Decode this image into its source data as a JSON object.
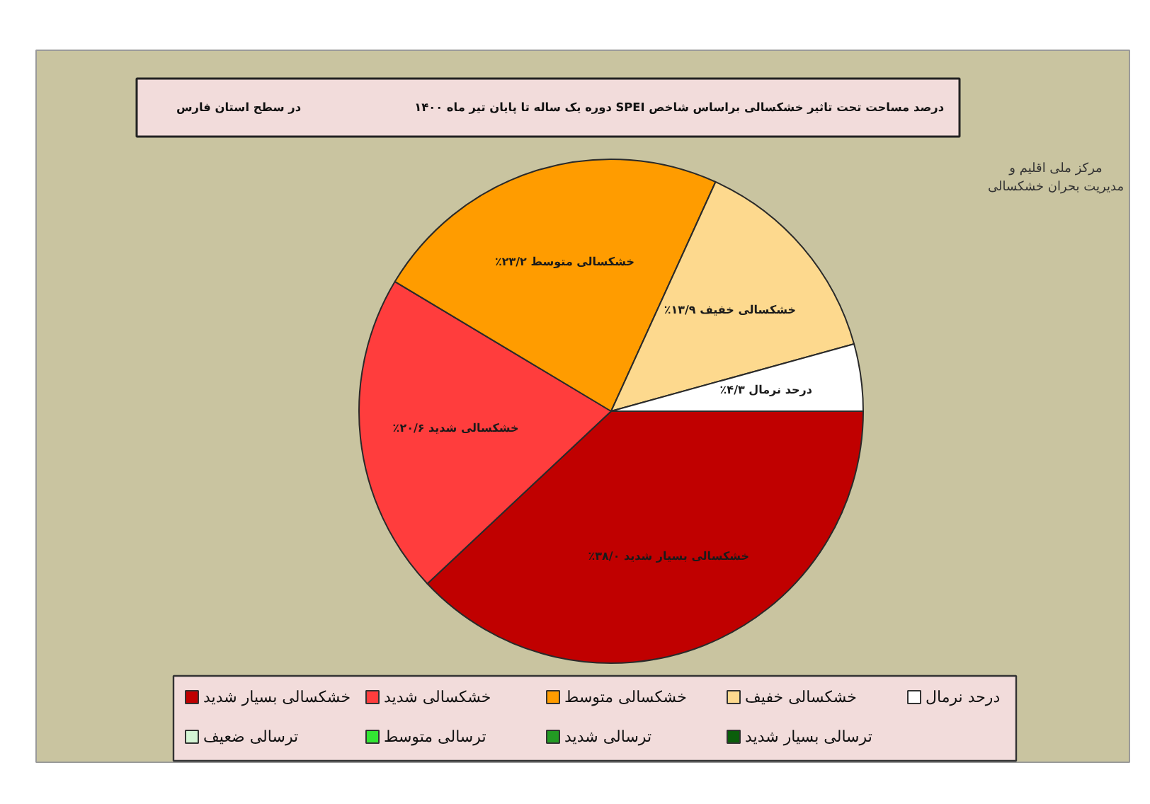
{
  "chart_data": {
    "type": "pie",
    "title": "درصد مساحت تحت تاثیر خشکسالی براساس شاخص SPEI دوره یک ساله تا پایان تیر ماه ۱۴۰۰",
    "subtitle": "در سطح استان فارس",
    "categories": [
      "خشکسالی بسیار شدید",
      "خشکسالی شدید",
      "خشکسالی متوسط",
      "خشکسالی خفیف",
      "درحد نرمال",
      "ترسالی ضعیف",
      "ترسالی متوسط",
      "ترسالی شدید",
      "ترسالی بسیار شدید"
    ],
    "values": [
      38.0,
      20.6,
      23.2,
      13.9,
      4.3,
      0,
      0,
      0,
      0
    ],
    "colors": [
      "#c00000",
      "#ff3d3d",
      "#ff9c00",
      "#fdd98e",
      "#ffffff",
      "#d5f5d5",
      "#33e633",
      "#239b23",
      "#0b5e0b"
    ],
    "value_labels": [
      "خشکسالی بسیار شدید ۳۸/۰٪",
      "خشکسالی شدید ۲۰/۶٪",
      "خشکسالی متوسط ۲۳/۲٪",
      "خشکسالی خفیف ۱۳/۹٪",
      "درحد نرمال ۴/۳٪",
      null,
      null,
      null,
      null
    ],
    "legend": "bottom",
    "annotations": [
      "مرکز ملی اقلیم و",
      "مدیریت بحران خشکسالی"
    ]
  }
}
